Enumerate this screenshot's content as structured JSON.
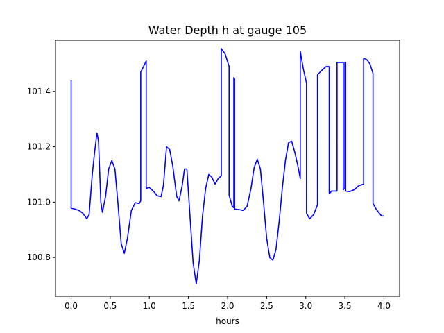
{
  "chart_data": {
    "type": "line",
    "title": "Water Depth h at gauge 105",
    "xlabel": "hours",
    "ylabel": "",
    "xlim": [
      -0.2,
      4.2
    ],
    "ylim": [
      100.66,
      101.585
    ],
    "xticks": [
      0.0,
      0.5,
      1.0,
      1.5,
      2.0,
      2.5,
      3.0,
      3.5,
      4.0
    ],
    "xtick_labels": [
      "0.0",
      "0.5",
      "1.0",
      "1.5",
      "2.0",
      "2.5",
      "3.0",
      "3.5",
      "4.0"
    ],
    "yticks": [
      100.8,
      101.0,
      101.2,
      101.4
    ],
    "ytick_labels": [
      "100.8",
      "101.0",
      "101.2",
      "101.4"
    ],
    "grid": false,
    "series": [
      {
        "color": "#0000ff",
        "points": [
          [
            0.0,
            101.44
          ],
          [
            0.0,
            100.978
          ],
          [
            0.05,
            100.975
          ],
          [
            0.1,
            100.97
          ],
          [
            0.15,
            100.96
          ],
          [
            0.2,
            100.94
          ],
          [
            0.23,
            100.955
          ],
          [
            0.27,
            101.1
          ],
          [
            0.3,
            101.18
          ],
          [
            0.33,
            101.25
          ],
          [
            0.35,
            101.22
          ],
          [
            0.38,
            101.0
          ],
          [
            0.4,
            100.963
          ],
          [
            0.44,
            101.02
          ],
          [
            0.48,
            101.12
          ],
          [
            0.52,
            101.15
          ],
          [
            0.56,
            101.12
          ],
          [
            0.6,
            100.99
          ],
          [
            0.64,
            100.85
          ],
          [
            0.68,
            100.815
          ],
          [
            0.72,
            100.87
          ],
          [
            0.77,
            100.97
          ],
          [
            0.82,
            100.998
          ],
          [
            0.87,
            100.995
          ],
          [
            0.89,
            101.005
          ],
          [
            0.89,
            101.47
          ],
          [
            0.96,
            101.51
          ],
          [
            0.96,
            101.05
          ],
          [
            1.0,
            101.053
          ],
          [
            1.05,
            101.04
          ],
          [
            1.1,
            101.023
          ],
          [
            1.15,
            101.02
          ],
          [
            1.18,
            101.06
          ],
          [
            1.22,
            101.2
          ],
          [
            1.26,
            101.19
          ],
          [
            1.3,
            101.13
          ],
          [
            1.35,
            101.02
          ],
          [
            1.38,
            101.005
          ],
          [
            1.42,
            101.06
          ],
          [
            1.45,
            101.12
          ],
          [
            1.48,
            101.12
          ],
          [
            1.52,
            100.95
          ],
          [
            1.56,
            100.78
          ],
          [
            1.6,
            100.705
          ],
          [
            1.64,
            100.79
          ],
          [
            1.68,
            100.95
          ],
          [
            1.72,
            101.05
          ],
          [
            1.76,
            101.1
          ],
          [
            1.8,
            101.09
          ],
          [
            1.84,
            101.065
          ],
          [
            1.88,
            101.085
          ],
          [
            1.92,
            101.095
          ],
          [
            1.92,
            101.555
          ],
          [
            1.97,
            101.535
          ],
          [
            2.02,
            101.49
          ],
          [
            2.02,
            101.025
          ],
          [
            2.06,
            100.985
          ],
          [
            2.08,
            100.98
          ],
          [
            2.08,
            101.45
          ],
          [
            2.09,
            101.445
          ],
          [
            2.09,
            100.975
          ],
          [
            2.15,
            100.973
          ],
          [
            2.2,
            100.97
          ],
          [
            2.25,
            100.985
          ],
          [
            2.3,
            101.05
          ],
          [
            2.34,
            101.125
          ],
          [
            2.38,
            101.155
          ],
          [
            2.42,
            101.12
          ],
          [
            2.46,
            101.0
          ],
          [
            2.5,
            100.87
          ],
          [
            2.54,
            100.8
          ],
          [
            2.58,
            100.79
          ],
          [
            2.62,
            100.83
          ],
          [
            2.66,
            100.93
          ],
          [
            2.7,
            101.05
          ],
          [
            2.74,
            101.15
          ],
          [
            2.78,
            101.215
          ],
          [
            2.82,
            101.22
          ],
          [
            2.86,
            101.18
          ],
          [
            2.9,
            101.13
          ],
          [
            2.93,
            101.085
          ],
          [
            2.93,
            101.545
          ],
          [
            2.97,
            101.48
          ],
          [
            3.01,
            101.43
          ],
          [
            3.01,
            100.96
          ],
          [
            3.05,
            100.94
          ],
          [
            3.1,
            100.955
          ],
          [
            3.15,
            100.99
          ],
          [
            3.15,
            101.46
          ],
          [
            3.2,
            101.475
          ],
          [
            3.26,
            101.49
          ],
          [
            3.3,
            101.49
          ],
          [
            3.3,
            101.03
          ],
          [
            3.33,
            101.04
          ],
          [
            3.36,
            101.04
          ],
          [
            3.4,
            101.04
          ],
          [
            3.4,
            101.505
          ],
          [
            3.48,
            101.505
          ],
          [
            3.48,
            101.045
          ],
          [
            3.5,
            101.05
          ],
          [
            3.5,
            101.505
          ],
          [
            3.51,
            101.505
          ],
          [
            3.51,
            101.04
          ],
          [
            3.56,
            101.038
          ],
          [
            3.62,
            101.045
          ],
          [
            3.68,
            101.06
          ],
          [
            3.74,
            101.065
          ],
          [
            3.74,
            101.52
          ],
          [
            3.78,
            101.515
          ],
          [
            3.82,
            101.5
          ],
          [
            3.86,
            101.465
          ],
          [
            3.86,
            100.995
          ],
          [
            3.9,
            100.975
          ],
          [
            3.94,
            100.96
          ],
          [
            3.97,
            100.95
          ],
          [
            4.0,
            100.95
          ]
        ]
      }
    ]
  }
}
